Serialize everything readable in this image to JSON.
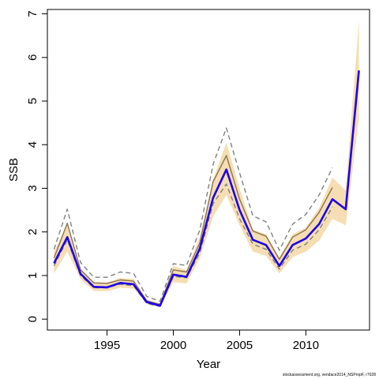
{
  "chart_data": {
    "type": "line",
    "xlabel": "Year",
    "ylabel": "SSB",
    "xlim": [
      1990.5,
      2014.8
    ],
    "ylim": [
      -0.25,
      7.1
    ],
    "xticks": [
      1995,
      2000,
      2005,
      2010
    ],
    "yticks": [
      0,
      1,
      2,
      3,
      4,
      5,
      6,
      7
    ],
    "x": [
      1991,
      1992,
      1993,
      1994,
      1995,
      1996,
      1997,
      1998,
      1999,
      2000,
      2001,
      2002,
      2003,
      2004,
      2005,
      2006,
      2007,
      2008,
      2009,
      2010,
      2011,
      2012,
      2013,
      2014
    ],
    "band": {
      "color": "#f5deb3",
      "lower": [
        1.05,
        1.55,
        0.92,
        0.64,
        0.64,
        0.72,
        0.7,
        0.35,
        0.28,
        0.85,
        0.82,
        1.4,
        2.35,
        2.85,
        2.15,
        1.55,
        1.45,
        1.05,
        1.42,
        1.55,
        1.8,
        2.3,
        2.15,
        4.6
      ],
      "upper": [
        1.55,
        2.15,
        1.17,
        0.84,
        0.84,
        0.94,
        0.92,
        0.45,
        0.35,
        1.22,
        1.12,
        1.9,
        3.2,
        4.05,
        3.0,
        2.05,
        1.95,
        1.42,
        1.95,
        2.1,
        2.55,
        3.25,
        2.95,
        6.85
      ]
    },
    "series": [
      {
        "color": "#1e00e6",
        "style": "solid",
        "values": [
          1.28,
          1.88,
          1.04,
          0.74,
          0.73,
          0.83,
          0.8,
          0.39,
          0.31,
          1.02,
          0.97,
          1.62,
          2.78,
          3.43,
          2.5,
          1.82,
          1.7,
          1.22,
          1.7,
          1.85,
          2.18,
          2.75,
          2.52,
          5.7
        ]
      },
      {
        "color": "#8a7350",
        "style": "solid",
        "values": [
          1.4,
          2.2,
          1.13,
          0.83,
          0.82,
          0.9,
          0.87,
          0.42,
          0.34,
          1.13,
          1.08,
          1.75,
          3.15,
          3.75,
          2.75,
          2.02,
          1.9,
          1.37,
          1.88,
          2.05,
          2.45,
          3.02,
          null,
          null
        ]
      },
      {
        "color": "#808080",
        "style": "dashed",
        "values": [
          1.6,
          2.52,
          1.3,
          0.96,
          0.96,
          1.08,
          1.05,
          0.52,
          0.41,
          1.27,
          1.23,
          2.05,
          3.55,
          4.38,
          3.35,
          2.37,
          2.23,
          1.58,
          2.18,
          2.4,
          2.85,
          3.47,
          null,
          null
        ]
      },
      {
        "color": "#808080",
        "style": "dashed",
        "values": [
          1.22,
          1.82,
          1.0,
          0.72,
          0.72,
          0.8,
          0.77,
          0.36,
          0.29,
          0.98,
          0.95,
          1.52,
          2.65,
          3.1,
          2.3,
          1.72,
          1.6,
          1.15,
          1.58,
          1.72,
          2.05,
          2.57,
          null,
          null
        ]
      }
    ]
  },
  "footnote": "stockassessment.org, vendace2014_NSPropF, r7028"
}
